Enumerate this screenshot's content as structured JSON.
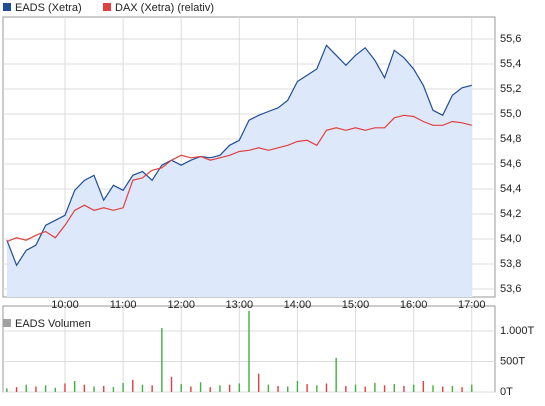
{
  "chart_data": [
    {
      "type": "line",
      "series": [
        {
          "name": "EADS (Xetra)",
          "color": "#1f4e96",
          "values": [
            53.99,
            53.79,
            53.91,
            53.95,
            54.11,
            54.15,
            54.19,
            54.39,
            54.47,
            54.51,
            54.31,
            54.43,
            54.39,
            54.51,
            54.54,
            54.47,
            54.59,
            54.63,
            54.59,
            54.63,
            54.66,
            54.65,
            54.67,
            54.75,
            54.79,
            54.95,
            54.99,
            55.02,
            55.05,
            55.11,
            55.26,
            55.31,
            55.36,
            55.55,
            55.47,
            55.39,
            55.47,
            55.53,
            55.43,
            55.29,
            55.51,
            55.45,
            55.36,
            55.23,
            55.03,
            54.99,
            55.15,
            55.21,
            55.23
          ]
        },
        {
          "name": "DAX (Xetra) (relativ)",
          "color": "#e04040",
          "values": [
            53.98,
            54.01,
            53.99,
            54.03,
            54.06,
            54.01,
            54.11,
            54.23,
            54.27,
            54.23,
            54.25,
            54.23,
            54.25,
            54.47,
            54.49,
            54.55,
            54.57,
            54.63,
            54.67,
            54.65,
            54.66,
            54.63,
            54.65,
            54.67,
            54.7,
            54.71,
            54.73,
            54.71,
            54.73,
            54.75,
            54.78,
            54.79,
            54.75,
            54.87,
            54.89,
            54.87,
            54.89,
            54.87,
            54.89,
            54.89,
            54.97,
            54.99,
            54.98,
            54.94,
            54.91,
            54.91,
            54.94,
            54.93,
            54.91
          ]
        }
      ],
      "x": [
        540,
        550,
        560,
        570,
        580,
        590,
        600,
        610,
        620,
        630,
        640,
        650,
        660,
        670,
        680,
        690,
        700,
        710,
        720,
        730,
        740,
        750,
        760,
        770,
        780,
        790,
        800,
        810,
        820,
        830,
        840,
        850,
        860,
        870,
        880,
        890,
        900,
        910,
        920,
        930,
        940,
        950,
        960,
        970,
        980,
        990,
        1000,
        1010,
        1020
      ],
      "xlim": [
        536,
        1044
      ],
      "xticks": [
        {
          "value": 600,
          "label": "10:00"
        },
        {
          "value": 660,
          "label": "11:00"
        },
        {
          "value": 720,
          "label": "12:00"
        },
        {
          "value": 780,
          "label": "13:00"
        },
        {
          "value": 840,
          "label": "14:00"
        },
        {
          "value": 900,
          "label": "15:00"
        },
        {
          "value": 960,
          "label": "16:00"
        },
        {
          "value": 1020,
          "label": "17:00"
        }
      ],
      "ylim": [
        53.536,
        55.776
      ],
      "yticks": [
        {
          "value": 53.6,
          "label": "53,6"
        },
        {
          "value": 53.8,
          "label": "53,8"
        },
        {
          "value": 54,
          "label": "54,0"
        },
        {
          "value": 54.2,
          "label": "54,2"
        },
        {
          "value": 54.4,
          "label": "54,4"
        },
        {
          "value": 54.6,
          "label": "54,6"
        },
        {
          "value": 54.8,
          "label": "54,8"
        },
        {
          "value": 55,
          "label": "55,0"
        },
        {
          "value": 55.2,
          "label": "55,2"
        },
        {
          "value": 55.4,
          "label": "55,4"
        },
        {
          "value": 55.6,
          "label": "55,6"
        }
      ],
      "area_color": "#dde8fa",
      "grid": true
    },
    {
      "type": "bar",
      "legend": "EADS Volumen",
      "legend_color": "#a0a0a0",
      "x": [
        540,
        550,
        560,
        570,
        580,
        590,
        600,
        610,
        620,
        630,
        640,
        650,
        660,
        670,
        680,
        690,
        700,
        710,
        720,
        730,
        740,
        750,
        760,
        770,
        780,
        790,
        800,
        810,
        820,
        830,
        840,
        850,
        860,
        870,
        880,
        890,
        900,
        910,
        920,
        930,
        940,
        950,
        960,
        970,
        980,
        990,
        1000,
        1010,
        1020
      ],
      "values": [
        60,
        80,
        120,
        90,
        110,
        70,
        140,
        180,
        120,
        90,
        100,
        80,
        150,
        200,
        120,
        110,
        1050,
        250,
        130,
        90,
        160,
        80,
        110,
        120,
        140,
        1330,
        300,
        120,
        100,
        90,
        180,
        130,
        110,
        140,
        560,
        100,
        120,
        90,
        150,
        110,
        130,
        100,
        120,
        180,
        110,
        90,
        100,
        80,
        120
      ],
      "colors": [
        "#40b040",
        "#e04040",
        "#40b040",
        "#e04040",
        "#40b040",
        "#40b040",
        "#e04040",
        "#40b040",
        "#e04040",
        "#40b040",
        "#e04040",
        "#40b040",
        "#40b040",
        "#e04040",
        "#40b040",
        "#e04040",
        "#40b040",
        "#e04040",
        "#40b040",
        "#e04040",
        "#40b040",
        "#e04040",
        "#40b040",
        "#e04040",
        "#40b040",
        "#40b040",
        "#e04040",
        "#40b040",
        "#e04040",
        "#40b040",
        "#40b040",
        "#e04040",
        "#40b040",
        "#e04040",
        "#40b040",
        "#e04040",
        "#40b040",
        "#e04040",
        "#40b040",
        "#e04040",
        "#40b040",
        "#e04040",
        "#40b040",
        "#e04040",
        "#40b040",
        "#e04040",
        "#40b040",
        "#e04040",
        "#40b040"
      ],
      "xlim": [
        536,
        1044
      ],
      "ylim": [
        0,
        1410
      ],
      "yticks": [
        {
          "value": 0,
          "label": "0T"
        },
        {
          "value": 500,
          "label": "500T"
        },
        {
          "value": 1000,
          "label": "1.000T"
        }
      ],
      "grid": true
    }
  ]
}
